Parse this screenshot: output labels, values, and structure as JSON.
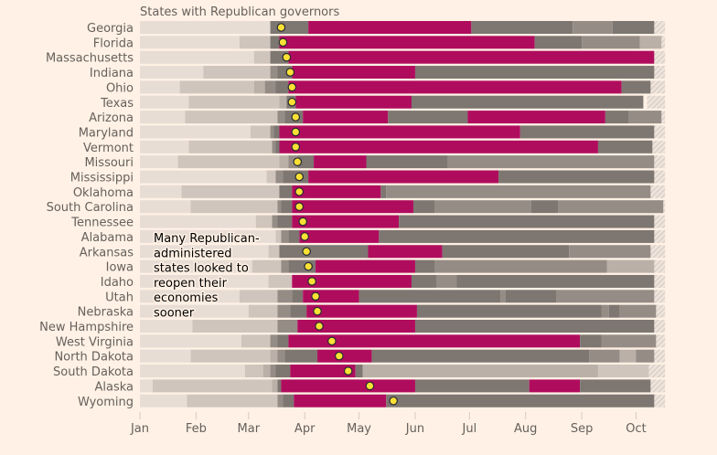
{
  "chart_data": {
    "type": "bar",
    "subtype": "stacked-timeline",
    "title": "States with Republican governors",
    "xlabel": "",
    "ylabel": "",
    "x_unit": "day of year 2020 (0 = Jan 1)",
    "xlim": [
      0,
      284
    ],
    "x_ticks": [
      {
        "label": "Jan",
        "day": 0
      },
      {
        "label": "Feb",
        "day": 31
      },
      {
        "label": "Mar",
        "day": 60
      },
      {
        "label": "Apr",
        "day": 91
      },
      {
        "label": "May",
        "day": 121
      },
      {
        "label": "Jun",
        "day": 152
      },
      {
        "label": "Jul",
        "day": 182
      },
      {
        "label": "Aug",
        "day": 213
      },
      {
        "label": "Sep",
        "day": 244
      },
      {
        "label": "Oct",
        "day": 274
      }
    ],
    "data_end_day": 284,
    "no_data_until_day": 290,
    "colors": {
      "level0": "#E8DDD5",
      "level1": "#D0C5BD",
      "level2": "#BAB0A8",
      "level3": "#958C86",
      "level4": "#7D7671",
      "restrictive": "#B00C5E",
      "marker": "#FCE135",
      "marker_stroke": "#262A33",
      "hatch": "#D8CEC6",
      "axis_text": "#66605C",
      "background": "#FFF1E5"
    },
    "legend": "none",
    "annotation": {
      "lines": [
        "Many Republican-",
        "administered",
        "states looked to",
        "reopen their",
        "economies",
        "sooner"
      ],
      "placement": "over bars, Alabama to New Hampshire rows"
    },
    "series": [
      {
        "name": "Georgia",
        "marker_day": 78,
        "segments": [
          [
            0,
            72,
            0
          ],
          [
            72,
            93,
            4
          ],
          [
            93,
            183,
            "R"
          ],
          [
            183,
            239,
            4
          ],
          [
            239,
            261,
            3
          ],
          [
            261,
            284,
            4
          ]
        ]
      },
      {
        "name": "Florida",
        "marker_day": 79,
        "segments": [
          [
            0,
            55,
            0
          ],
          [
            55,
            72,
            1
          ],
          [
            72,
            77,
            4
          ],
          [
            77,
            218,
            "R"
          ],
          [
            218,
            244,
            4
          ],
          [
            244,
            276,
            3
          ],
          [
            276,
            288,
            2
          ]
        ]
      },
      {
        "name": "Massachusetts",
        "marker_day": 81,
        "segments": [
          [
            0,
            63,
            0
          ],
          [
            63,
            72,
            1
          ],
          [
            72,
            82,
            4
          ],
          [
            82,
            284,
            "R"
          ]
        ]
      },
      {
        "name": "Indiana",
        "marker_day": 83,
        "segments": [
          [
            0,
            35,
            0
          ],
          [
            35,
            72,
            1
          ],
          [
            72,
            76,
            3
          ],
          [
            76,
            84,
            4
          ],
          [
            84,
            152,
            "R"
          ],
          [
            152,
            284,
            4
          ]
        ]
      },
      {
        "name": "Ohio",
        "marker_day": 84,
        "segments": [
          [
            0,
            22,
            0
          ],
          [
            22,
            63,
            1
          ],
          [
            63,
            69,
            2
          ],
          [
            69,
            75,
            3
          ],
          [
            75,
            82,
            4
          ],
          [
            82,
            266,
            "R"
          ],
          [
            266,
            282,
            4
          ]
        ]
      },
      {
        "name": "Texas",
        "marker_day": 84,
        "segments": [
          [
            0,
            27,
            0
          ],
          [
            27,
            77,
            1
          ],
          [
            77,
            81,
            2
          ],
          [
            81,
            86,
            4
          ],
          [
            86,
            150,
            "R"
          ],
          [
            150,
            278,
            4
          ]
        ]
      },
      {
        "name": "Arizona",
        "marker_day": 86,
        "segments": [
          [
            0,
            25,
            0
          ],
          [
            25,
            76,
            1
          ],
          [
            76,
            80,
            3
          ],
          [
            80,
            90,
            4
          ],
          [
            90,
            137,
            "R"
          ],
          [
            137,
            181,
            4
          ],
          [
            181,
            257,
            "R"
          ],
          [
            257,
            270,
            4
          ],
          [
            270,
            288,
            3
          ]
        ]
      },
      {
        "name": "Maryland",
        "marker_day": 86,
        "segments": [
          [
            0,
            61,
            0
          ],
          [
            61,
            72,
            1
          ],
          [
            72,
            74,
            3
          ],
          [
            74,
            77,
            4
          ],
          [
            77,
            210,
            "R"
          ],
          [
            210,
            284,
            4
          ]
        ]
      },
      {
        "name": "Vermont",
        "marker_day": 86,
        "segments": [
          [
            0,
            27,
            0
          ],
          [
            27,
            73,
            1
          ],
          [
            73,
            75,
            3
          ],
          [
            75,
            77,
            4
          ],
          [
            77,
            253,
            "R"
          ],
          [
            253,
            283,
            4
          ]
        ]
      },
      {
        "name": "Missouri",
        "marker_day": 87,
        "segments": [
          [
            0,
            21,
            0
          ],
          [
            21,
            77,
            1
          ],
          [
            77,
            82,
            2
          ],
          [
            82,
            87,
            3
          ],
          [
            87,
            96,
            4
          ],
          [
            96,
            125,
            "R"
          ],
          [
            125,
            170,
            4
          ],
          [
            170,
            284,
            3
          ]
        ]
      },
      {
        "name": "Mississippi",
        "marker_day": 88,
        "segments": [
          [
            0,
            70,
            0
          ],
          [
            70,
            75,
            1
          ],
          [
            75,
            79,
            3
          ],
          [
            79,
            93,
            4
          ],
          [
            93,
            198,
            "R"
          ],
          [
            198,
            284,
            4
          ]
        ]
      },
      {
        "name": "Oklahoma",
        "marker_day": 88,
        "segments": [
          [
            0,
            23,
            0
          ],
          [
            23,
            77,
            1
          ],
          [
            77,
            84,
            4
          ],
          [
            84,
            133,
            "R"
          ],
          [
            133,
            136,
            4
          ],
          [
            136,
            282,
            3
          ]
        ]
      },
      {
        "name": "South Carolina",
        "marker_day": 88,
        "segments": [
          [
            0,
            28,
            0
          ],
          [
            28,
            76,
            1
          ],
          [
            76,
            78,
            3
          ],
          [
            78,
            84,
            4
          ],
          [
            84,
            151,
            "R"
          ],
          [
            151,
            163,
            4
          ],
          [
            163,
            216,
            3
          ],
          [
            216,
            231,
            4
          ],
          [
            231,
            289,
            3
          ]
        ]
      },
      {
        "name": "Tennessee",
        "marker_day": 90,
        "segments": [
          [
            0,
            64,
            0
          ],
          [
            64,
            73,
            1
          ],
          [
            73,
            76,
            3
          ],
          [
            76,
            84,
            4
          ],
          [
            84,
            143,
            "R"
          ],
          [
            143,
            284,
            4
          ]
        ]
      },
      {
        "name": "Alabama",
        "marker_day": 91,
        "segments": [
          [
            0,
            75,
            0
          ],
          [
            75,
            78,
            1
          ],
          [
            78,
            82,
            3
          ],
          [
            82,
            88,
            4
          ],
          [
            88,
            132,
            "R"
          ],
          [
            132,
            284,
            4
          ]
        ]
      },
      {
        "name": "Arkansas",
        "marker_day": 92,
        "segments": [
          [
            0,
            71,
            0
          ],
          [
            71,
            77,
            1
          ],
          [
            77,
            126,
            4
          ],
          [
            126,
            167,
            "R"
          ],
          [
            167,
            237,
            4
          ],
          [
            237,
            282,
            3
          ]
        ]
      },
      {
        "name": "Iowa",
        "marker_day": 93,
        "segments": [
          [
            0,
            62,
            0
          ],
          [
            62,
            78,
            1
          ],
          [
            78,
            82,
            3
          ],
          [
            82,
            97,
            4
          ],
          [
            97,
            152,
            "R"
          ],
          [
            152,
            163,
            4
          ],
          [
            163,
            258,
            3
          ],
          [
            258,
            284,
            2
          ]
        ]
      },
      {
        "name": "Idaho",
        "marker_day": 95,
        "segments": [
          [
            0,
            71,
            0
          ],
          [
            71,
            84,
            1
          ],
          [
            84,
            150,
            "R"
          ],
          [
            150,
            164,
            4
          ],
          [
            164,
            175,
            3
          ],
          [
            175,
            284,
            4
          ]
        ]
      },
      {
        "name": "Utah",
        "marker_day": 97,
        "segments": [
          [
            0,
            55,
            0
          ],
          [
            55,
            76,
            1
          ],
          [
            76,
            84,
            3
          ],
          [
            84,
            90,
            4
          ],
          [
            90,
            121,
            "R"
          ],
          [
            121,
            199,
            4
          ],
          [
            199,
            202,
            3
          ],
          [
            202,
            230,
            4
          ],
          [
            230,
            284,
            3
          ]
        ]
      },
      {
        "name": "Nebraska",
        "marker_day": 98,
        "segments": [
          [
            0,
            60,
            0
          ],
          [
            60,
            76,
            1
          ],
          [
            76,
            83,
            3
          ],
          [
            83,
            92,
            4
          ],
          [
            92,
            153,
            "R"
          ],
          [
            153,
            255,
            4
          ],
          [
            255,
            259,
            3
          ],
          [
            259,
            265,
            4
          ],
          [
            265,
            285,
            3
          ]
        ]
      },
      {
        "name": "New Hampshire",
        "marker_day": 99,
        "segments": [
          [
            0,
            29,
            0
          ],
          [
            29,
            76,
            1
          ],
          [
            76,
            87,
            3
          ],
          [
            87,
            152,
            "R"
          ],
          [
            152,
            284,
            4
          ]
        ]
      },
      {
        "name": "West Virginia",
        "marker_day": 106,
        "segments": [
          [
            0,
            56,
            0
          ],
          [
            56,
            72,
            1
          ],
          [
            72,
            76,
            3
          ],
          [
            76,
            82,
            4
          ],
          [
            82,
            243,
            "R"
          ],
          [
            243,
            255,
            4
          ],
          [
            255,
            285,
            3
          ]
        ]
      },
      {
        "name": "North Dakota",
        "marker_day": 110,
        "segments": [
          [
            0,
            28,
            0
          ],
          [
            28,
            72,
            1
          ],
          [
            72,
            76,
            2
          ],
          [
            76,
            80,
            3
          ],
          [
            80,
            98,
            4
          ],
          [
            98,
            128,
            "R"
          ],
          [
            128,
            248,
            4
          ],
          [
            248,
            265,
            3
          ],
          [
            265,
            274,
            2
          ],
          [
            274,
            284,
            3
          ]
        ]
      },
      {
        "name": "South Dakota",
        "marker_day": 115,
        "segments": [
          [
            0,
            58,
            0
          ],
          [
            58,
            68,
            1
          ],
          [
            68,
            72,
            2
          ],
          [
            72,
            75,
            3
          ],
          [
            75,
            83,
            4
          ],
          [
            83,
            119,
            "R"
          ],
          [
            119,
            123,
            4
          ],
          [
            123,
            253,
            2
          ],
          [
            253,
            281,
            1
          ]
        ]
      },
      {
        "name": "Alaska",
        "marker_day": 127,
        "segments": [
          [
            0,
            7,
            0
          ],
          [
            7,
            73,
            1
          ],
          [
            73,
            76,
            2
          ],
          [
            76,
            78,
            4
          ],
          [
            78,
            152,
            "R"
          ],
          [
            152,
            215,
            4
          ],
          [
            215,
            243,
            "R"
          ],
          [
            243,
            282,
            4
          ]
        ]
      },
      {
        "name": "Wyoming",
        "marker_day": 140,
        "segments": [
          [
            0,
            26,
            0
          ],
          [
            26,
            76,
            1
          ],
          [
            76,
            79,
            3
          ],
          [
            79,
            85,
            4
          ],
          [
            85,
            136,
            "R"
          ],
          [
            136,
            284,
            4
          ]
        ]
      }
    ]
  }
}
